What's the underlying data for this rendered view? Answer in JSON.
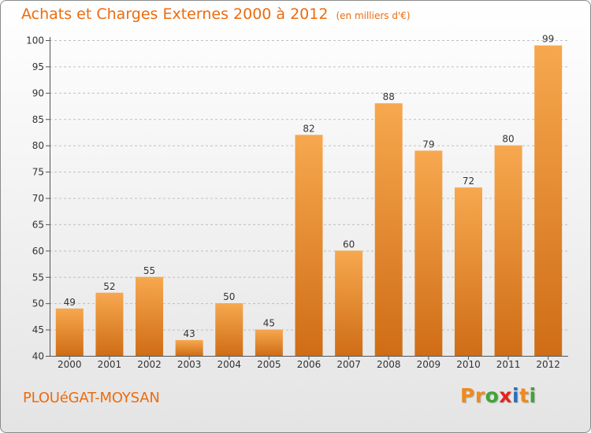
{
  "header": {
    "title": "Achats et Charges Externes 2000 à 2012",
    "unit": "(en milliers d'€)"
  },
  "footer": {
    "commune": "PLOUéGAT-MOYSAN",
    "logo_letters": [
      "P",
      "r",
      "o",
      "x",
      "i",
      "t",
      "i"
    ]
  },
  "colors": {
    "accent": "#ec6b0e",
    "bar_top": "#f7a84f",
    "bar_bottom": "#cf6d16",
    "grid": "#bfbfbf",
    "logo": [
      "#f08a1c",
      "#f08a1c",
      "#3fa535",
      "#e2231a",
      "#2d6fb7",
      "#f08a1c",
      "#3fa535"
    ]
  },
  "chart_data": {
    "type": "bar",
    "categories": [
      "2000",
      "2001",
      "2002",
      "2003",
      "2004",
      "2005",
      "2006",
      "2007",
      "2008",
      "2009",
      "2010",
      "2011",
      "2012"
    ],
    "values": [
      49,
      52,
      55,
      43,
      50,
      45,
      82,
      60,
      88,
      79,
      72,
      80,
      99
    ],
    "title": "Achats et Charges Externes 2000 à 2012",
    "ylim": [
      40,
      100
    ],
    "yticks": [
      40,
      45,
      50,
      55,
      60,
      65,
      70,
      75,
      80,
      85,
      90,
      95,
      100
    ],
    "grid": true
  }
}
